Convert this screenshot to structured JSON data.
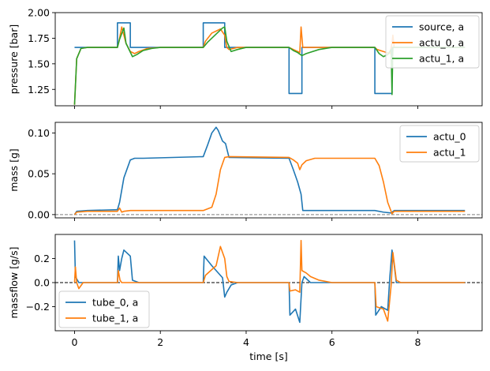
{
  "chart_data": [
    {
      "type": "line",
      "xlabel": "",
      "ylabel": "pressure [bar]",
      "xlim": [
        -0.45,
        9.5
      ],
      "ylim": [
        1.09,
        2.0
      ],
      "yticks": [
        1.25,
        1.5,
        1.75,
        2.0
      ],
      "ytick_labels": [
        "1.25",
        "1.50",
        "1.75",
        "2.00"
      ],
      "xticks": [
        0,
        2,
        4,
        6,
        8
      ],
      "xtick_labels": [
        "",
        "",
        "",
        "",
        ""
      ],
      "legend_position": "top-right",
      "series": [
        {
          "name": "source, a",
          "color": "#1f77b4",
          "x": [
            0,
            1.0,
            1.0,
            1.3,
            1.3,
            3.0,
            3.0,
            3.5,
            3.5,
            5.0,
            5.0,
            5.3,
            5.3,
            7.0,
            7.0,
            7.4,
            7.4,
            9.1
          ],
          "y": [
            1.66,
            1.66,
            1.9,
            1.9,
            1.66,
            1.66,
            1.9,
            1.9,
            1.66,
            1.66,
            1.21,
            1.21,
            1.66,
            1.66,
            1.21,
            1.21,
            1.66,
            1.66
          ]
        },
        {
          "name": "actu_0, a",
          "color": "#ff7f0e",
          "x": [
            0,
            0.05,
            0.15,
            0.3,
            1.0,
            1.05,
            1.1,
            1.15,
            1.2,
            1.3,
            1.4,
            1.5,
            1.7,
            2.0,
            3.0,
            3.05,
            3.2,
            3.4,
            3.5,
            3.55,
            3.6,
            3.8,
            5.0,
            5.1,
            5.2,
            5.25,
            5.28,
            5.32,
            5.5,
            6.0,
            7.0,
            7.05,
            7.2,
            7.35,
            7.4,
            7.42,
            7.45,
            7.6,
            9.1
          ],
          "y": [
            1.1,
            1.55,
            1.65,
            1.66,
            1.66,
            1.75,
            1.86,
            1.78,
            1.7,
            1.62,
            1.6,
            1.62,
            1.65,
            1.66,
            1.66,
            1.72,
            1.8,
            1.84,
            1.78,
            1.66,
            1.64,
            1.66,
            1.66,
            1.64,
            1.62,
            1.61,
            1.86,
            1.66,
            1.66,
            1.66,
            1.66,
            1.64,
            1.62,
            1.6,
            1.7,
            1.78,
            1.66,
            1.66,
            1.66
          ]
        },
        {
          "name": "actu_1, a",
          "color": "#2ca02c",
          "x": [
            0,
            0.05,
            0.15,
            0.3,
            1.0,
            1.05,
            1.15,
            1.2,
            1.35,
            1.45,
            1.6,
            1.8,
            2.0,
            3.0,
            3.1,
            3.3,
            3.45,
            3.5,
            3.55,
            3.65,
            3.8,
            4.0,
            5.0,
            5.1,
            5.2,
            5.3,
            5.4,
            5.7,
            6.0,
            7.0,
            7.1,
            7.2,
            7.3,
            7.38,
            7.4,
            7.42,
            7.45,
            7.6,
            9.1
          ],
          "y": [
            1.1,
            1.55,
            1.65,
            1.66,
            1.66,
            1.74,
            1.85,
            1.7,
            1.57,
            1.59,
            1.63,
            1.65,
            1.66,
            1.66,
            1.71,
            1.79,
            1.85,
            1.86,
            1.72,
            1.62,
            1.64,
            1.66,
            1.66,
            1.63,
            1.61,
            1.58,
            1.6,
            1.64,
            1.66,
            1.66,
            1.6,
            1.57,
            1.59,
            1.64,
            1.2,
            1.66,
            1.66,
            1.66,
            1.66
          ]
        }
      ]
    },
    {
      "type": "line",
      "xlabel": "",
      "ylabel": "mass [g]",
      "xlim": [
        -0.45,
        9.5
      ],
      "ylim": [
        -0.004,
        0.113
      ],
      "yticks": [
        0.0,
        0.05,
        0.1
      ],
      "ytick_labels": [
        "0.00",
        "0.05",
        "0.10"
      ],
      "xticks": [
        0,
        2,
        4,
        6,
        8
      ],
      "xtick_labels": [
        "",
        "",
        "",
        "",
        ""
      ],
      "legend_position": "top-right",
      "reference_line": {
        "y": 0.0,
        "color": "#808080",
        "style": "dashed"
      },
      "series": [
        {
          "name": "actu_0",
          "color": "#1f77b4",
          "x": [
            0,
            0.05,
            0.3,
            1.0,
            1.05,
            1.15,
            1.3,
            1.4,
            1.6,
            3.0,
            3.1,
            3.2,
            3.3,
            3.35,
            3.45,
            3.52,
            3.6,
            5.0,
            5.1,
            5.2,
            5.28,
            5.32,
            5.5,
            7.0,
            7.2,
            7.38,
            7.45,
            7.6,
            9.1
          ],
          "y": [
            0.0,
            0.004,
            0.005,
            0.006,
            0.015,
            0.045,
            0.067,
            0.069,
            0.069,
            0.071,
            0.085,
            0.1,
            0.107,
            0.103,
            0.09,
            0.087,
            0.07,
            0.069,
            0.055,
            0.04,
            0.025,
            0.005,
            0.005,
            0.005,
            0.003,
            0.002,
            0.005,
            0.005,
            0.005
          ]
        },
        {
          "name": "actu_1",
          "color": "#ff7f0e",
          "x": [
            0,
            0.05,
            0.3,
            1.0,
            1.05,
            1.1,
            1.15,
            1.3,
            2.0,
            3.0,
            3.2,
            3.3,
            3.4,
            3.5,
            3.6,
            5.0,
            5.1,
            5.2,
            5.25,
            5.3,
            5.4,
            5.6,
            7.0,
            7.1,
            7.2,
            7.3,
            7.4,
            7.45,
            7.6,
            9.1
          ],
          "y": [
            0.0,
            0.003,
            0.004,
            0.004,
            0.008,
            0.003,
            0.004,
            0.005,
            0.005,
            0.005,
            0.009,
            0.025,
            0.055,
            0.07,
            0.071,
            0.07,
            0.067,
            0.063,
            0.055,
            0.061,
            0.066,
            0.069,
            0.069,
            0.06,
            0.04,
            0.015,
            0.001,
            0.004,
            0.004,
            0.004
          ]
        }
      ]
    },
    {
      "type": "line",
      "xlabel": "time [s]",
      "ylabel": "massflow [g/s]",
      "xlim": [
        -0.45,
        9.5
      ],
      "ylim": [
        -0.4,
        0.4
      ],
      "yticks": [
        -0.2,
        0.0,
        0.2
      ],
      "ytick_labels": [
        "−0.2",
        "0.0",
        "0.2"
      ],
      "xticks": [
        0,
        2,
        4,
        6,
        8
      ],
      "xtick_labels": [
        "0",
        "2",
        "4",
        "6",
        "8"
      ],
      "legend_position": "bottom-left",
      "reference_line": {
        "y": 0.0,
        "color": "#000000",
        "style": "dashed"
      },
      "series": [
        {
          "name": "tube_0, a",
          "color": "#1f77b4",
          "x": [
            0,
            0.02,
            0.1,
            0.2,
            1.0,
            1.02,
            1.05,
            1.1,
            1.15,
            1.3,
            1.35,
            1.5,
            3.0,
            3.02,
            3.2,
            3.45,
            3.5,
            3.55,
            3.65,
            3.8,
            5.0,
            5.02,
            5.15,
            5.25,
            5.3,
            5.35,
            5.5,
            7.0,
            7.02,
            7.15,
            7.3,
            7.35,
            7.4,
            7.45,
            7.5,
            7.6,
            9.1
          ],
          "y": [
            0.35,
            0.05,
            0.0,
            0.0,
            0.0,
            0.22,
            0.1,
            0.2,
            0.27,
            0.22,
            0.02,
            0.0,
            0.0,
            0.22,
            0.14,
            0.04,
            -0.12,
            -0.08,
            -0.02,
            0.0,
            0.0,
            -0.27,
            -0.22,
            -0.33,
            0.0,
            0.05,
            0.0,
            0.0,
            -0.27,
            -0.2,
            -0.23,
            0.05,
            0.27,
            0.15,
            0.0,
            0.0,
            0.0
          ]
        },
        {
          "name": "tube_1, a",
          "color": "#ff7f0e",
          "x": [
            0,
            0.02,
            0.05,
            0.1,
            0.2,
            1.0,
            1.02,
            1.06,
            1.1,
            1.2,
            1.3,
            3.0,
            3.05,
            3.3,
            3.4,
            3.5,
            3.55,
            3.6,
            3.8,
            5.0,
            5.02,
            5.15,
            5.25,
            5.28,
            5.3,
            5.4,
            5.5,
            5.7,
            6.0,
            7.0,
            7.03,
            7.2,
            7.3,
            7.38,
            7.42,
            7.5,
            7.6,
            9.1
          ],
          "y": [
            0.0,
            0.13,
            0.0,
            -0.05,
            0.0,
            0.0,
            0.1,
            0.02,
            0.0,
            0.0,
            0.0,
            0.0,
            0.06,
            0.14,
            0.3,
            0.2,
            0.05,
            0.01,
            0.0,
            0.0,
            -0.07,
            -0.06,
            -0.08,
            0.35,
            0.1,
            0.08,
            0.05,
            0.02,
            0.0,
            0.0,
            -0.2,
            -0.22,
            -0.32,
            -0.02,
            0.25,
            0.02,
            0.0,
            0.0
          ]
        }
      ]
    }
  ]
}
